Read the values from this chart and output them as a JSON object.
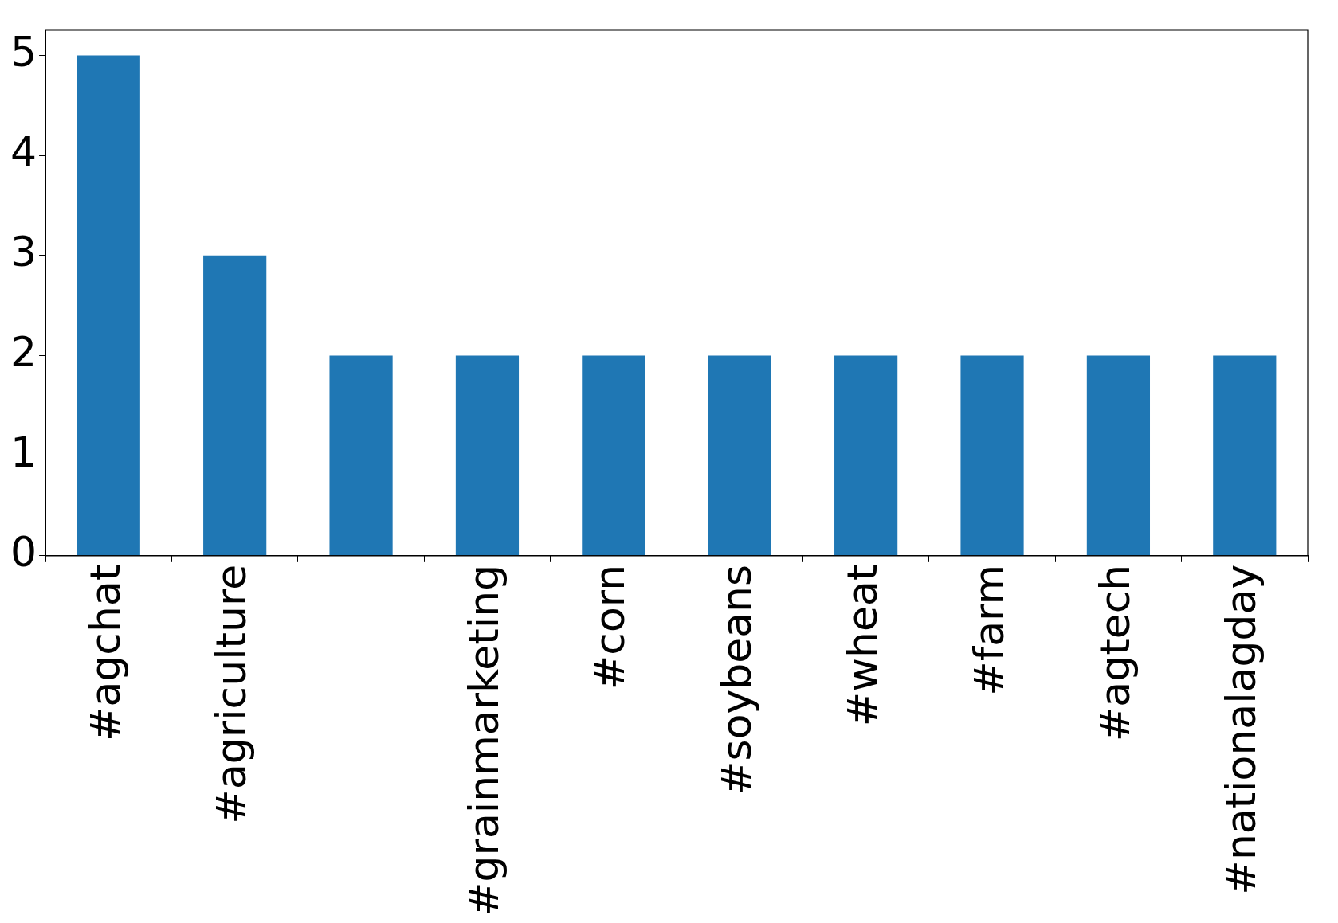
{
  "chart_data": {
    "type": "bar",
    "categories": [
      "#agchat",
      "#agriculture",
      null,
      "#grainmarketing",
      "#corn",
      "#soybeans",
      "#wheat",
      "#farm",
      "#agtech",
      "#nationalagday"
    ],
    "values": [
      5,
      3,
      2,
      2,
      2,
      2,
      2,
      2,
      2,
      2
    ],
    "color": "#1f77b4",
    "ylim": [
      0,
      5.25
    ],
    "yticks": [
      0,
      1,
      2,
      3,
      4,
      5
    ],
    "grid": false,
    "legend": false
  }
}
